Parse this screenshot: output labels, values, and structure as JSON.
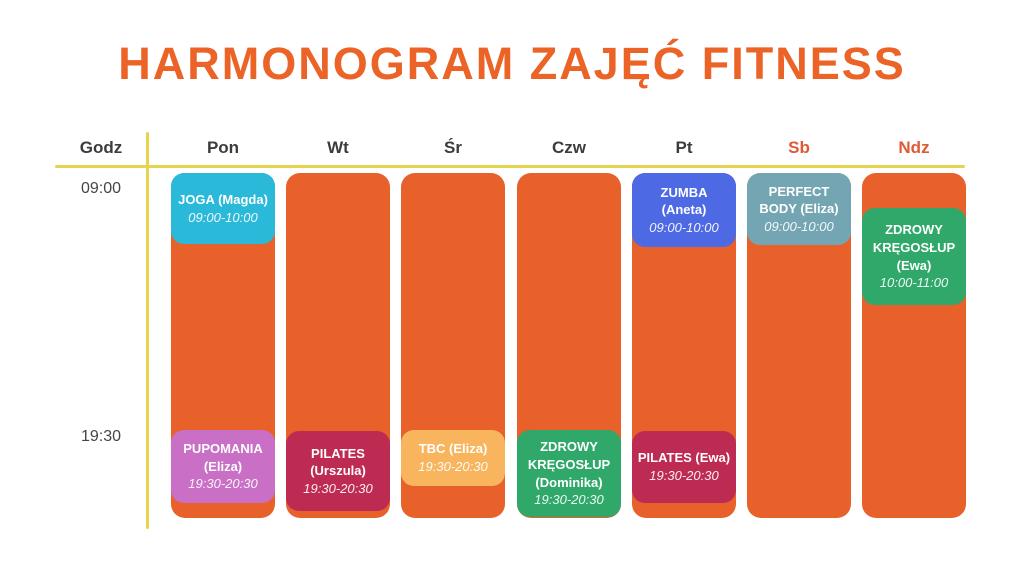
{
  "title": "HARMONOGRAM ZAJĘĆ FITNESS",
  "header": {
    "time_col": "Godz",
    "days": [
      "Pon",
      "Wt",
      "Śr",
      "Czw",
      "Pt",
      "Sb",
      "Ndz"
    ]
  },
  "time_labels": {
    "morning": "09:00",
    "evening": "19:30"
  },
  "events": [
    {
      "day": "Pon",
      "title": "JOGA (Magda)",
      "time": "09:00-10:00",
      "color": "#2bb9d9"
    },
    {
      "day": "Pt",
      "title": "ZUMBA (Aneta)",
      "time": "09:00-10:00",
      "color": "#4e69e4"
    },
    {
      "day": "Sb",
      "title": "PERFECT BODY (Eliza)",
      "time": "09:00-10:00",
      "color": "#73a6b2"
    },
    {
      "day": "Ndz",
      "title": "ZDROWY KRĘGOSŁUP (Ewa)",
      "time": "10:00-11:00",
      "color": "#2fa86a"
    },
    {
      "day": "Pon",
      "title": "PUPOMANIA (Eliza)",
      "time": "19:30-20:30",
      "color": "#c96fc5"
    },
    {
      "day": "Wt",
      "title": "PILATES (Urszula)",
      "time": "19:30-20:30",
      "color": "#be2b52"
    },
    {
      "day": "Śr",
      "title": "TBC (Eliza)",
      "time": "19:30-20:30",
      "color": "#f8b55e"
    },
    {
      "day": "Czw",
      "title": "ZDROWY KRĘGOSŁUP (Dominika)",
      "time": "19:30-20:30",
      "color": "#2fa86a"
    },
    {
      "day": "Pt",
      "title": "PILATES (Ewa)",
      "time": "19:30-20:30",
      "color": "#be2b52"
    }
  ],
  "colors": {
    "title_orange": "#eb6326",
    "column_orange": "#e8612b",
    "grid_yellow": "#e7d44e",
    "header_text": "#3c3c3c",
    "weekend_text": "#e05a33",
    "card_text": "#ffffff"
  }
}
